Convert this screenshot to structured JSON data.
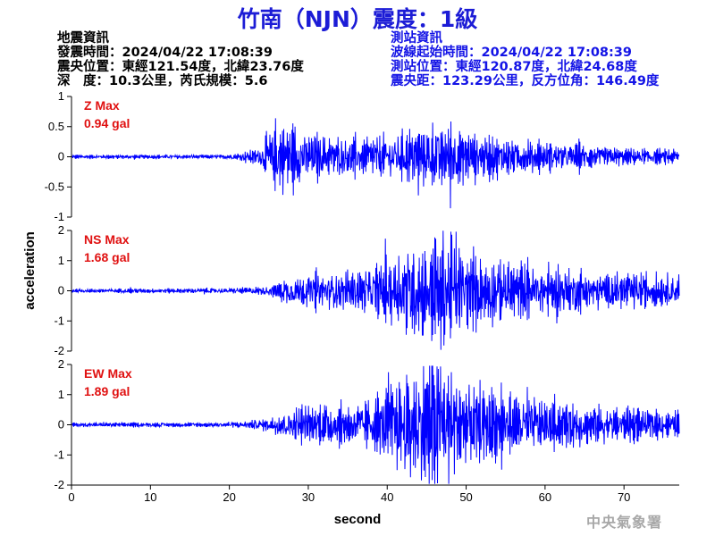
{
  "title": "竹南（NJN）震度：1級",
  "earthquake_info": {
    "heading": "地震資訊",
    "origin_time": "發震時間：2024/04/22 17:08:39",
    "epicenter": "震央位置：東經121.54度，北緯23.76度",
    "depth_magnitude": "深　度：10.3公里，芮氏規模：5.6"
  },
  "station_info": {
    "heading": "測站資訊",
    "waveform_start": "波線起始時間：2024/04/22 17:08:39",
    "station_location": "測站位置：東經120.87度，北緯24.68度",
    "distance_azimuth": "震央距：123.29公里，反方位角：146.49度"
  },
  "agency": "中央氣象署",
  "colors": {
    "trace": "#0000ff",
    "max_label": "#e01010",
    "title": "#1c1cd6",
    "station_text": "#1414e6"
  },
  "chart_data": {
    "type": "line",
    "xlabel": "second",
    "ylabel": "acceleration",
    "xlim": [
      0,
      77
    ],
    "xticks": [
      0,
      10,
      20,
      30,
      40,
      50,
      60,
      70
    ],
    "grid": false,
    "panels": [
      {
        "name": "Z",
        "max_label": "Z Max",
        "max_value": "0.94 gal",
        "ylim": [
          -1,
          1
        ],
        "yticks": [
          "1",
          "0.5",
          "0",
          "-0.5",
          "-1"
        ],
        "ytick_values": [
          1,
          0.5,
          0,
          -0.5,
          -1
        ],
        "envelope": [
          [
            0,
            0.05
          ],
          [
            19,
            0.05
          ],
          [
            21,
            0.08
          ],
          [
            24,
            0.25
          ],
          [
            25,
            0.75
          ],
          [
            27,
            0.85
          ],
          [
            30,
            0.6
          ],
          [
            35,
            0.45
          ],
          [
            40,
            0.55
          ],
          [
            45,
            0.7
          ],
          [
            47,
            0.9
          ],
          [
            50,
            0.6
          ],
          [
            55,
            0.45
          ],
          [
            60,
            0.35
          ],
          [
            65,
            0.3
          ],
          [
            70,
            0.2
          ],
          [
            77,
            0.18
          ]
        ]
      },
      {
        "name": "NS",
        "max_label": "NS Max",
        "max_value": "1.68 gal",
        "ylim": [
          -2,
          2
        ],
        "yticks": [
          "2",
          "1",
          "0",
          "-1",
          "-2"
        ],
        "ytick_values": [
          2,
          1,
          0,
          -1,
          -2
        ],
        "envelope": [
          [
            0,
            0.05
          ],
          [
            20,
            0.06
          ],
          [
            25,
            0.12
          ],
          [
            27,
            0.35
          ],
          [
            32,
            0.45
          ],
          [
            38,
            0.55
          ],
          [
            41,
            0.85
          ],
          [
            43,
            1.3
          ],
          [
            45,
            1.0
          ],
          [
            47,
            1.6
          ],
          [
            50,
            0.9
          ],
          [
            55,
            0.75
          ],
          [
            60,
            0.6
          ],
          [
            65,
            0.5
          ],
          [
            70,
            0.45
          ],
          [
            77,
            0.35
          ]
        ]
      },
      {
        "name": "EW",
        "max_label": "EW Max",
        "max_value": "1.89 gal",
        "ylim": [
          -2,
          2
        ],
        "yticks": [
          "2",
          "1",
          "0",
          "-1",
          "-2"
        ],
        "ytick_values": [
          2,
          1,
          0,
          -1,
          -2
        ],
        "envelope": [
          [
            0,
            0.05
          ],
          [
            20,
            0.06
          ],
          [
            25,
            0.15
          ],
          [
            27,
            0.4
          ],
          [
            32,
            0.5
          ],
          [
            38,
            0.6
          ],
          [
            42,
            1.2
          ],
          [
            44,
            1.5
          ],
          [
            46,
            1.8
          ],
          [
            48,
            1.5
          ],
          [
            50,
            1.0
          ],
          [
            55,
            0.8
          ],
          [
            60,
            0.6
          ],
          [
            65,
            0.5
          ],
          [
            70,
            0.4
          ],
          [
            77,
            0.3
          ]
        ]
      }
    ]
  }
}
